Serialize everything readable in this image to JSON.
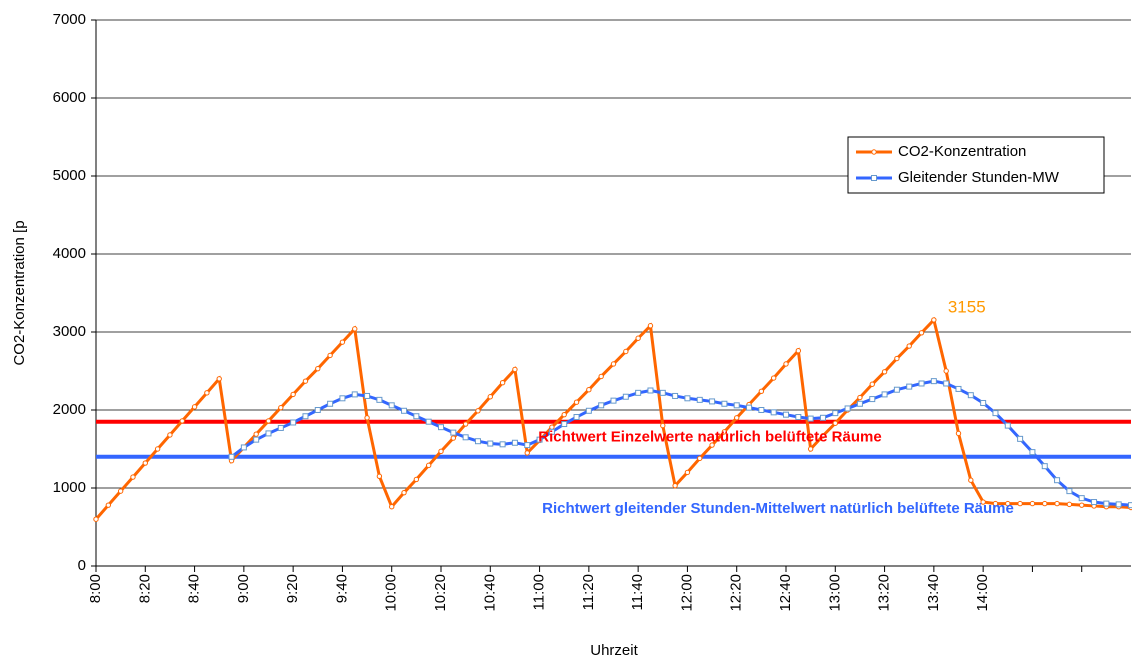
{
  "chart_data": {
    "type": "line",
    "xlabel": "Uhrzeit",
    "ylabel": "CO2-Konzentration [p",
    "x": [
      "8:00",
      "8:05",
      "8:10",
      "8:15",
      "8:20",
      "8:25",
      "8:30",
      "8:35",
      "8:40",
      "8:45",
      "8:50",
      "8:55",
      "9:00",
      "9:05",
      "9:10",
      "9:15",
      "9:20",
      "9:25",
      "9:30",
      "9:35",
      "9:40",
      "9:45",
      "9:50",
      "9:55",
      "10:00",
      "10:05",
      "10:10",
      "10:15",
      "10:20",
      "10:25",
      "10:30",
      "10:35",
      "10:40",
      "10:45",
      "10:50",
      "10:55",
      "11:00",
      "11:05",
      "11:10",
      "11:15",
      "11:20",
      "11:25",
      "11:30",
      "11:35",
      "11:40",
      "11:45",
      "11:50",
      "11:55",
      "12:00",
      "12:05",
      "12:10",
      "12:15",
      "12:20",
      "12:25",
      "12:30",
      "12:35",
      "12:40",
      "12:45",
      "12:50",
      "12:55",
      "13:00",
      "13:05",
      "13:10",
      "13:15",
      "13:20",
      "13:25",
      "13:30",
      "13:35",
      "13:40",
      "13:45",
      "13:50",
      "13:55",
      "14:00",
      "14:05",
      "14:10",
      "14:15",
      "14:20",
      "14:25",
      "14:30",
      "14:35",
      "14:40",
      "14:45",
      "14:50",
      "14:55",
      "15:00"
    ],
    "series": [
      {
        "name": "CO2-Konzentration",
        "color": "#ff6600",
        "marker": "circle",
        "values": [
          600,
          780,
          960,
          1140,
          1320,
          1500,
          1680,
          1860,
          2040,
          2220,
          2400,
          1350,
          1520,
          1690,
          1860,
          2030,
          2200,
          2370,
          2530,
          2700,
          2870,
          3040,
          1900,
          1150,
          760,
          940,
          1110,
          1290,
          1470,
          1640,
          1820,
          1990,
          2170,
          2350,
          2520,
          1450,
          1610,
          1780,
          1940,
          2100,
          2260,
          2430,
          2590,
          2750,
          2920,
          3080,
          1800,
          1030,
          1200,
          1380,
          1550,
          1720,
          1900,
          2070,
          2240,
          2410,
          2590,
          2760,
          1500,
          1670,
          1830,
          2000,
          2160,
          2330,
          2490,
          2660,
          2820,
          2990,
          3155,
          2500,
          1700,
          1100,
          820,
          800,
          800,
          800,
          800,
          800,
          800,
          790,
          780,
          770,
          760,
          760,
          750
        ]
      },
      {
        "name": "Gleitender Stunden-MW",
        "color": "#3366ff",
        "marker": "square",
        "values": [
          null,
          null,
          null,
          null,
          null,
          null,
          null,
          null,
          null,
          null,
          null,
          1400,
          1520,
          1620,
          1700,
          1770,
          1840,
          1920,
          2000,
          2080,
          2150,
          2200,
          2180,
          2130,
          2060,
          1990,
          1920,
          1850,
          1780,
          1710,
          1650,
          1600,
          1570,
          1560,
          1580,
          1550,
          1620,
          1720,
          1820,
          1910,
          1990,
          2060,
          2120,
          2170,
          2220,
          2250,
          2220,
          2180,
          2150,
          2130,
          2110,
          2080,
          2060,
          2030,
          2000,
          1970,
          1940,
          1910,
          1890,
          1900,
          1960,
          2020,
          2080,
          2140,
          2200,
          2260,
          2300,
          2340,
          2370,
          2340,
          2270,
          2190,
          2090,
          1960,
          1800,
          1630,
          1460,
          1280,
          1100,
          960,
          870,
          820,
          800,
          790,
          780
        ]
      }
    ],
    "xlim": [
      "8:00",
      "15:00"
    ],
    "xticks": [
      {
        "value": "8:00",
        "label": "8:00"
      },
      {
        "value": "8:20",
        "label": "8:20"
      },
      {
        "value": "8:40",
        "label": "8:40"
      },
      {
        "value": "9:00",
        "label": "9:00"
      },
      {
        "value": "9:20",
        "label": "9:20"
      },
      {
        "value": "9:40",
        "label": "9:40"
      },
      {
        "value": "10:00",
        "label": "10:00"
      },
      {
        "value": "10:20",
        "label": "10:20"
      },
      {
        "value": "10:40",
        "label": "10:40"
      },
      {
        "value": "11:00",
        "label": "11:00"
      },
      {
        "value": "11:20",
        "label": "11:20"
      },
      {
        "value": "11:40",
        "label": "11:40"
      },
      {
        "value": "12:00",
        "label": "12:00"
      },
      {
        "value": "12:20",
        "label": "12:20"
      },
      {
        "value": "12:40",
        "label": "12:40"
      },
      {
        "value": "13:00",
        "label": "13:00"
      },
      {
        "value": "13:20",
        "label": "13:20"
      },
      {
        "value": "13:40",
        "label": "13:40"
      },
      {
        "value": "14:00",
        "label": "14:00"
      },
      {
        "value": "14:20"
      },
      {
        "value": "14:40"
      }
    ],
    "ylim": [
      0,
      7000
    ],
    "yticks": [
      0,
      1000,
      2000,
      3000,
      4000,
      5000,
      6000,
      7000
    ],
    "grid": true,
    "legend": "upper right",
    "reference_lines": [
      {
        "value": 1850,
        "color": "#ff0000",
        "label": "Richtwert Einzelwerte natürlich belüftete Räume"
      },
      {
        "value": 1400,
        "color": "#3366ff",
        "label": "Richtwert gleitender Stunden-Mittelwert  natürlich belüftete Räume"
      }
    ],
    "annotations": [
      {
        "x": "13:40",
        "y": 3155,
        "text": "3155",
        "color": "#ff9900"
      }
    ]
  }
}
